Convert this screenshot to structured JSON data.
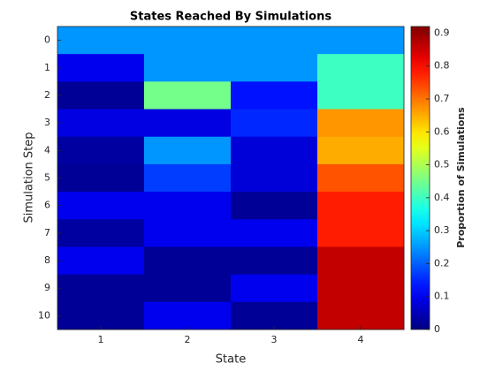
{
  "chart_data": {
    "type": "heatmap",
    "title": "States Reached By Simulations",
    "x_label": "State",
    "y_label": "Simulation Step",
    "colorbar_label": "Proportion of Simulations",
    "x_categories": [
      1,
      2,
      3,
      4
    ],
    "y_categories": [
      0,
      1,
      2,
      3,
      4,
      5,
      6,
      7,
      8,
      9,
      10
    ],
    "values": [
      [
        0.25,
        0.25,
        0.25,
        0.25
      ],
      [
        0.1,
        0.25,
        0.25,
        0.4
      ],
      [
        0.02,
        0.45,
        0.13,
        0.4
      ],
      [
        0.09,
        0.09,
        0.15,
        0.67
      ],
      [
        0.03,
        0.25,
        0.08,
        0.65
      ],
      [
        0.02,
        0.17,
        0.08,
        0.73
      ],
      [
        0.1,
        0.1,
        0.02,
        0.78
      ],
      [
        0.03,
        0.1,
        0.1,
        0.78
      ],
      [
        0.1,
        0.02,
        0.02,
        0.86
      ],
      [
        0.02,
        0.02,
        0.1,
        0.86
      ],
      [
        0.02,
        0.1,
        0.02,
        0.86
      ]
    ],
    "colormap": "jet",
    "clim": [
      0,
      0.92
    ],
    "colorbar_ticks": [
      0,
      0.1,
      0.2,
      0.3,
      0.4,
      0.5,
      0.6,
      0.7,
      0.8,
      0.9
    ]
  }
}
